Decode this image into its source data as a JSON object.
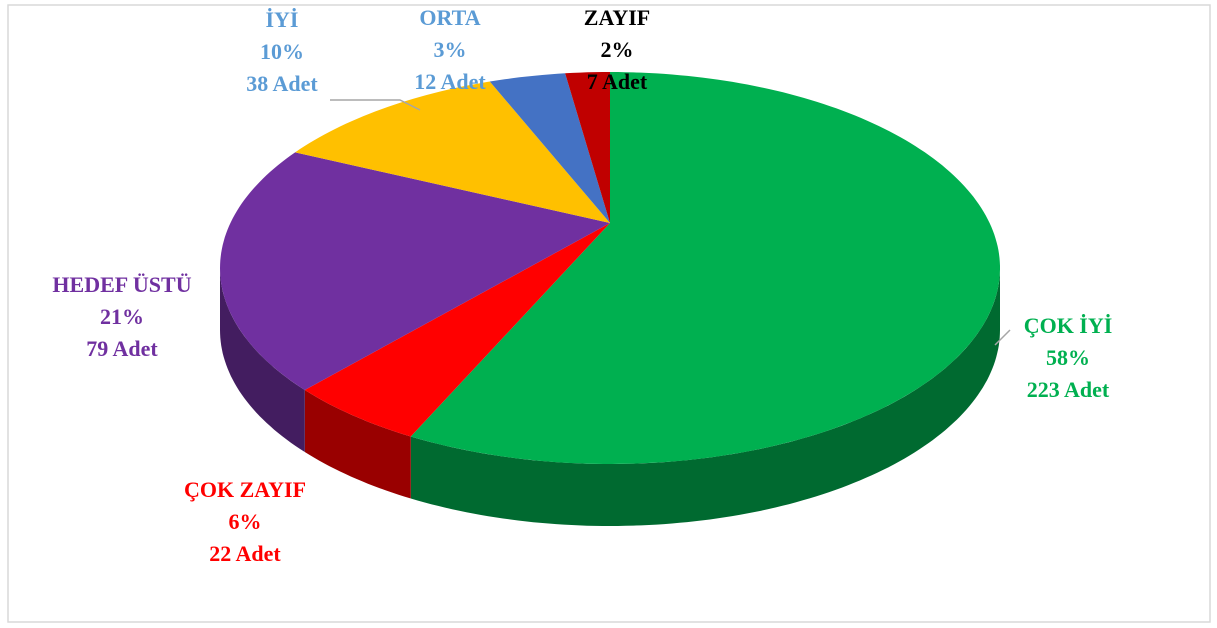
{
  "chart_data": {
    "type": "pie",
    "categories": [
      "ÇOK İYİ",
      "ÇOK ZAYIF",
      "HEDEF ÜSTÜ",
      "İYİ",
      "ORTA",
      "ZAYIF"
    ],
    "values": [
      223,
      22,
      79,
      38,
      12,
      7
    ],
    "value_labels": [
      "223 Adet",
      "22 Adet",
      "79 Adet",
      "38 Adet",
      "12 Adet",
      "7 Adet"
    ],
    "percent_labels": [
      "58%",
      "6%",
      "21%",
      "10%",
      "3%",
      "2%"
    ],
    "colors": [
      "#00b050",
      "#ff0000",
      "#7030a0",
      "#ffc000",
      "#4472c4",
      "#c00000"
    ],
    "label_colors": [
      "#00b050",
      "#ff0000",
      "#7030a0",
      "#5b9bd5",
      "#5b9bd5",
      "#000000"
    ]
  }
}
